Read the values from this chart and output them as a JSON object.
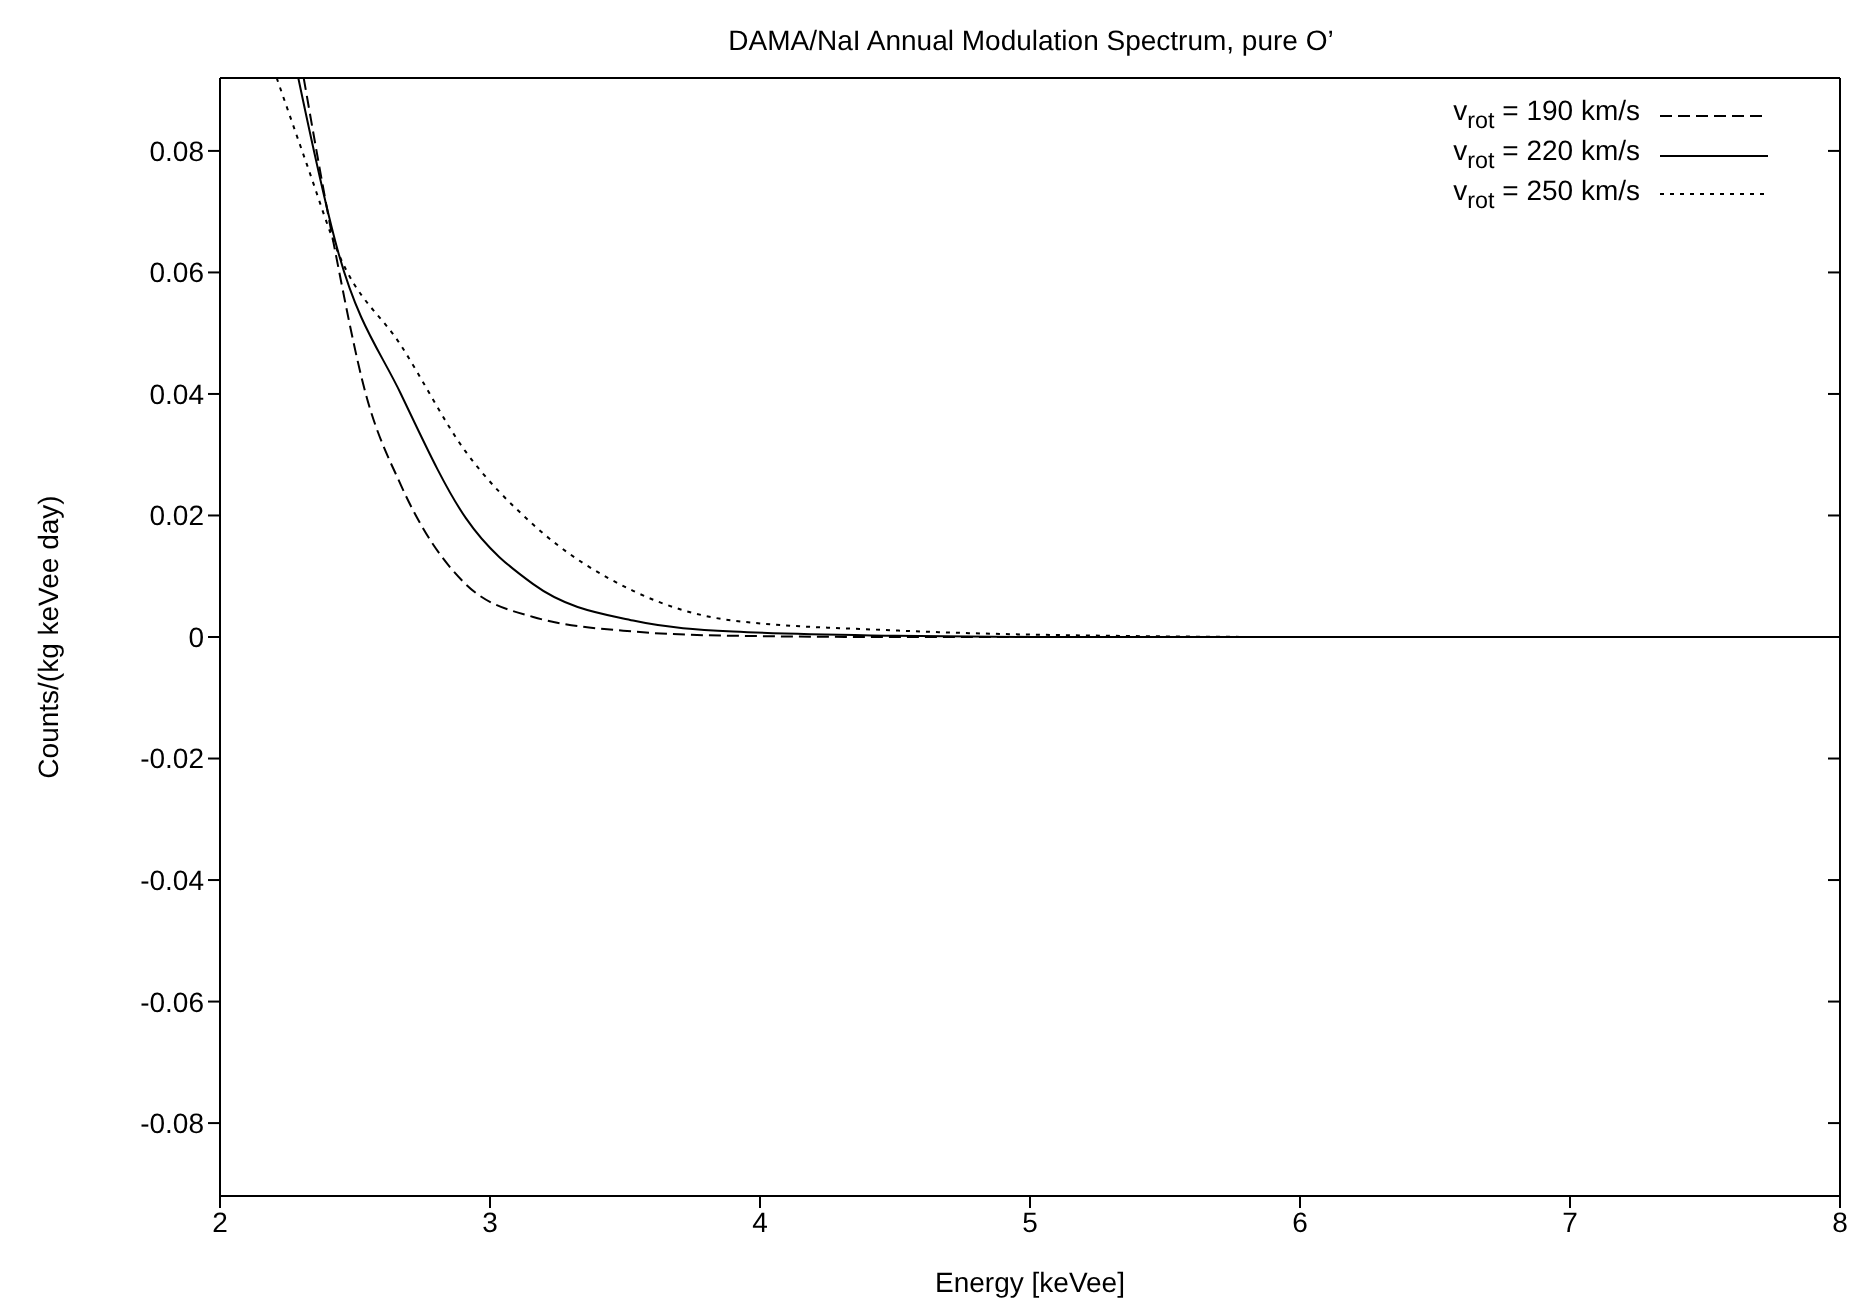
{
  "chart_data": {
    "type": "line",
    "title": "DAMA/NaI Annual Modulation Spectrum, pure O’",
    "xlabel": "Energy [keVee]",
    "ylabel": "Counts/(kg keVee day)",
    "xlim": [
      2,
      8
    ],
    "ylim": [
      -0.092,
      0.092
    ],
    "xticks": [
      2,
      3,
      4,
      5,
      6,
      7,
      8
    ],
    "yticks": [
      -0.08,
      -0.06,
      -0.04,
      -0.02,
      0,
      0.02,
      0.04,
      0.06,
      0.08
    ],
    "legend": "top right",
    "marker": "none",
    "series": [
      {
        "name": "v$_{rot}$ = 190 km/s",
        "color": "#000000",
        "line_style": "dashed",
        "x": [
          2.31,
          2.42,
          2.54,
          2.67,
          2.91,
          3.16,
          3.53,
          3.9,
          4.5,
          5,
          6,
          7,
          8
        ],
        "values": [
          0.092,
          0.065,
          0.04,
          0.025,
          0.0087,
          0.0033,
          0.0009,
          0.0002,
          0,
          0,
          0,
          0,
          0
        ]
      },
      {
        "name": "v$_{rot}$ = 220 km/s",
        "color": "#000000",
        "line_style": "solid",
        "x": [
          2.29,
          2.44,
          2.67,
          2.91,
          3.16,
          3.53,
          3.9,
          4.5,
          5,
          6,
          7,
          8
        ],
        "values": [
          0.092,
          0.063,
          0.04,
          0.0196,
          0.0087,
          0.0027,
          0.0009,
          0.0002,
          0,
          0,
          0,
          0
        ]
      },
      {
        "name": "v$_{rot}$ = 250 km/s",
        "color": "#000000",
        "line_style": "dotted",
        "x": [
          2.21,
          2.32,
          2.44,
          2.67,
          2.91,
          3.16,
          3.53,
          3.9,
          4.49,
          5,
          6,
          7,
          8
        ],
        "values": [
          0.092,
          0.078,
          0.063,
          0.048,
          0.0305,
          0.0185,
          0.0076,
          0.0027,
          0.0011,
          0.0004,
          0,
          0,
          0
        ]
      }
    ]
  }
}
